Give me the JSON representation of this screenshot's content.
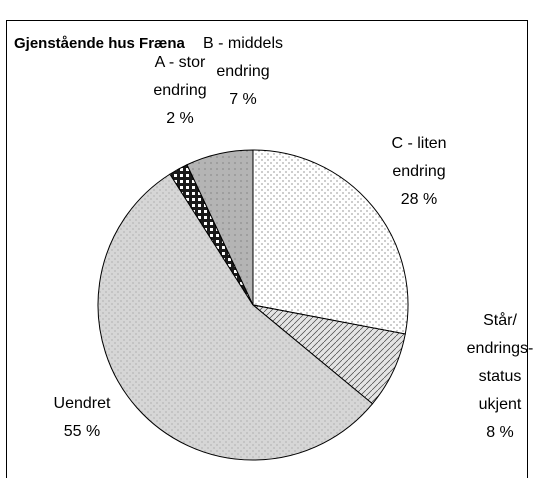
{
  "chart_data": {
    "type": "pie",
    "title": "Gjenstående hus Fræna",
    "categories": [
      "C - liten\nendring",
      "Står/\nendrings-\nstatus\nukjent",
      "Uendret",
      "A - stor\nendring",
      "B - middels\nendring"
    ],
    "values": [
      28,
      8,
      55,
      2,
      7
    ],
    "value_labels": [
      "28 %",
      "8 %",
      "55 %",
      "2 %",
      "7 %"
    ],
    "colors": [
      "#ffffff",
      "#e4e4e4",
      "#d6d6d6",
      "#1a1a1a",
      "#b4b4b4"
    ]
  }
}
